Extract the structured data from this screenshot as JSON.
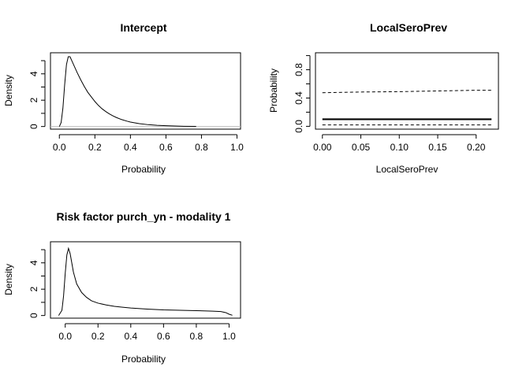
{
  "chart_data": [
    {
      "type": "line",
      "title": "Intercept",
      "xlabel": "Probability",
      "ylabel": "Density",
      "xlim": [
        -0.05,
        1.02
      ],
      "ylim": [
        -0.2,
        5.6
      ],
      "xticks": [
        "0.0",
        "0.2",
        "0.4",
        "0.6",
        "0.8",
        "1.0"
      ],
      "yticks": [
        "0",
        "2",
        "4"
      ],
      "baseline": 0,
      "series": [
        {
          "x": [
            0.0,
            0.01,
            0.02,
            0.03,
            0.04,
            0.05,
            0.06,
            0.07,
            0.08,
            0.1,
            0.12,
            0.14,
            0.16,
            0.18,
            0.2,
            0.22,
            0.24,
            0.26,
            0.28,
            0.3,
            0.32,
            0.35,
            0.38,
            0.4,
            0.45,
            0.5,
            0.55,
            0.6,
            0.65,
            0.7,
            0.77
          ],
          "y": [
            0.0,
            0.3,
            1.4,
            3.2,
            4.7,
            5.3,
            5.3,
            5.0,
            4.7,
            4.1,
            3.55,
            3.05,
            2.6,
            2.25,
            1.9,
            1.6,
            1.35,
            1.15,
            0.97,
            0.82,
            0.69,
            0.53,
            0.41,
            0.34,
            0.22,
            0.14,
            0.09,
            0.06,
            0.04,
            0.02,
            0.01
          ],
          "style": "solid"
        }
      ]
    },
    {
      "type": "line",
      "title": "LocalSeroPrev",
      "xlabel": "LocalSeroPrev",
      "ylabel": "Probability",
      "xlim": [
        -0.009,
        0.229
      ],
      "ylim": [
        -0.04,
        1.04
      ],
      "xticks": [
        "0.00",
        "0.05",
        "0.10",
        "0.15",
        "0.20"
      ],
      "yticks": [
        "0.0",
        "0.4",
        "0.8"
      ],
      "series": [
        {
          "x": [
            0.0,
            0.22
          ],
          "y": [
            0.1,
            0.1
          ],
          "style": "thick"
        },
        {
          "x": [
            0.0,
            0.05,
            0.1,
            0.15,
            0.2,
            0.22
          ],
          "y": [
            0.475,
            0.485,
            0.49,
            0.5,
            0.51,
            0.51
          ],
          "style": "dashed"
        },
        {
          "x": [
            0.0,
            0.22
          ],
          "y": [
            0.02,
            0.02
          ],
          "style": "dashed"
        }
      ]
    },
    {
      "type": "line",
      "title": "Risk factor purch_yn - modality  1",
      "xlabel": "Probability",
      "ylabel": "Density",
      "xlim": [
        -0.09,
        1.07
      ],
      "ylim": [
        -0.2,
        5.6
      ],
      "xticks": [
        "0.0",
        "0.2",
        "0.4",
        "0.6",
        "0.8",
        "1.0"
      ],
      "yticks": [
        "0",
        "2",
        "4"
      ],
      "series": [
        {
          "x": [
            -0.04,
            -0.02,
            -0.01,
            0.0,
            0.01,
            0.02,
            0.03,
            0.04,
            0.05,
            0.07,
            0.1,
            0.13,
            0.16,
            0.2,
            0.25,
            0.3,
            0.35,
            0.4,
            0.5,
            0.6,
            0.7,
            0.8,
            0.9,
            0.95,
            0.98,
            1.0,
            1.02
          ],
          "y": [
            0.0,
            0.4,
            1.5,
            3.2,
            4.6,
            5.1,
            4.7,
            4.0,
            3.3,
            2.4,
            1.75,
            1.38,
            1.12,
            0.94,
            0.8,
            0.7,
            0.63,
            0.57,
            0.49,
            0.43,
            0.4,
            0.37,
            0.33,
            0.3,
            0.22,
            0.1,
            0.02
          ],
          "style": "solid"
        }
      ]
    }
  ]
}
